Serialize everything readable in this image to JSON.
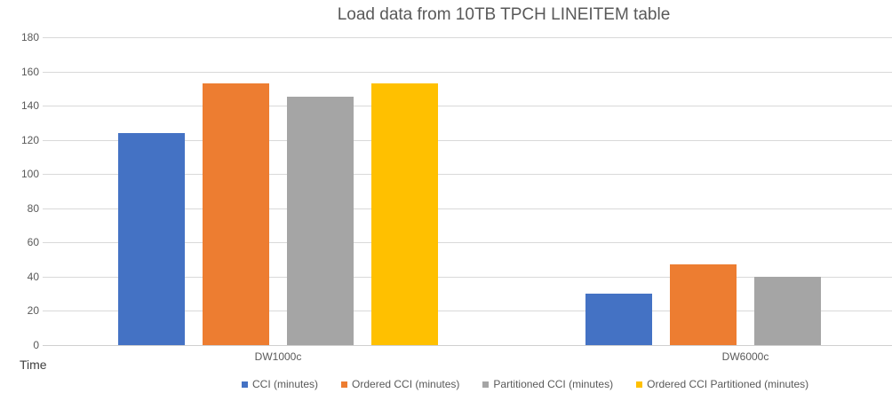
{
  "chart_data": {
    "type": "bar",
    "title": "Load data from 10TB TPCH LINEITEM table",
    "categories": [
      "DW1000c",
      "DW6000c"
    ],
    "series": [
      {
        "name": "CCI (minutes)",
        "color": "#4472C4",
        "values": [
          124,
          30
        ]
      },
      {
        "name": "Ordered CCI (minutes)",
        "color": "#ED7D31",
        "values": [
          153,
          47
        ]
      },
      {
        "name": "Partitioned CCI (minutes)",
        "color": "#A5A5A5",
        "values": [
          145,
          40
        ]
      },
      {
        "name": "Ordered CCI Partitioned (minutes)",
        "color": "#FFC000",
        "values": [
          153,
          0
        ]
      }
    ],
    "xlabel": "",
    "ylabel": "Time",
    "ylim": [
      0,
      180
    ],
    "yticks": [
      0,
      20,
      40,
      60,
      80,
      100,
      120,
      140,
      160,
      180
    ],
    "grid": true,
    "legend_position": "bottom",
    "colors": {
      "gridline": "#D9D9D9",
      "axis_line": "#D0D0D0",
      "tick_text": "#595959",
      "title_text": "#595959",
      "axis_title_text": "#404040"
    }
  }
}
